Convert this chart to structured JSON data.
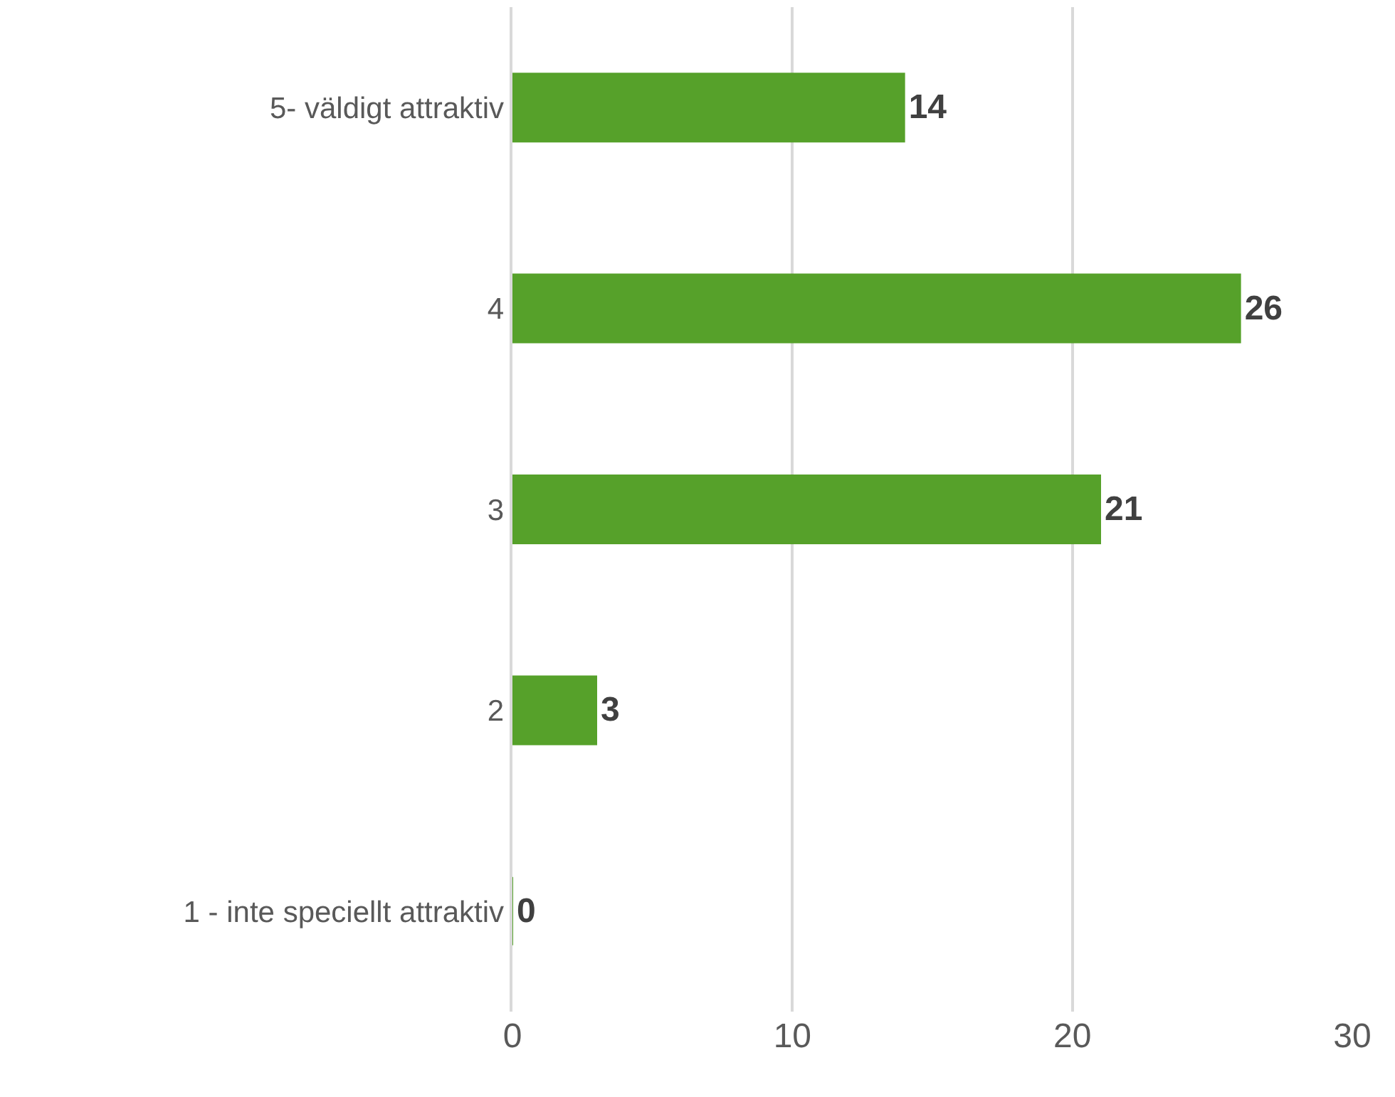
{
  "chart_data": {
    "type": "bar",
    "orientation": "horizontal",
    "categories": [
      "5- väldigt attraktiv",
      "4",
      "3",
      "2",
      "1 - inte speciellt attraktiv"
    ],
    "values": [
      14,
      26,
      21,
      3,
      0
    ],
    "color": "#56a12a",
    "xlim": [
      0,
      30
    ],
    "xticks": [
      0,
      10,
      20,
      30
    ],
    "grid": "x",
    "data_labels": true,
    "legend": false
  }
}
